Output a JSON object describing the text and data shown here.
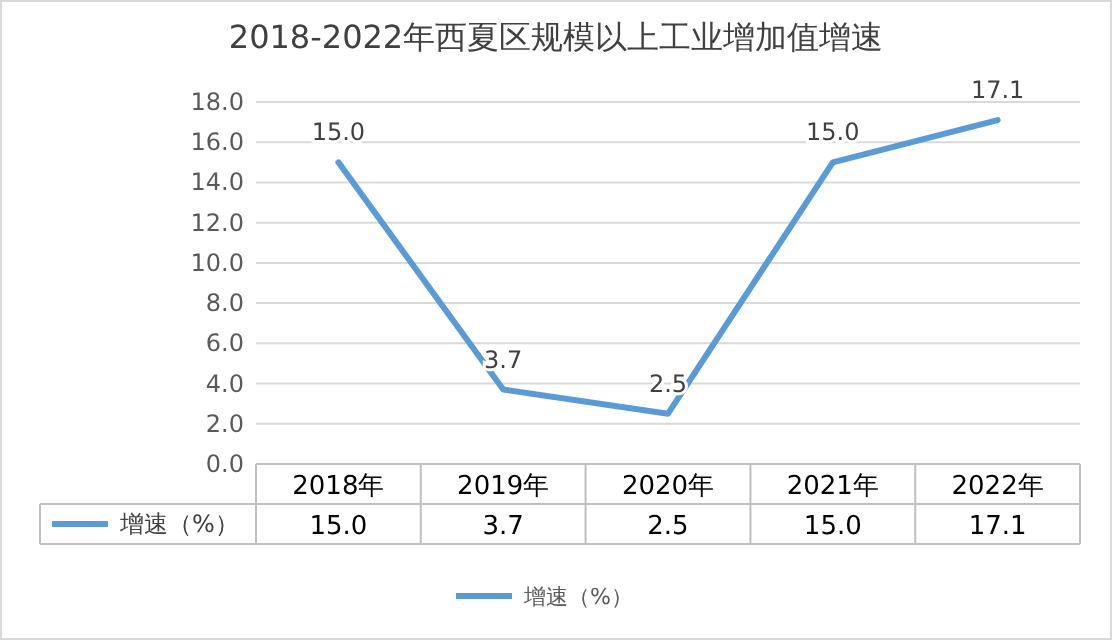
{
  "chart_data": {
    "type": "line",
    "title": "2018-2022年西夏区规模以上工业增加值增速",
    "categories": [
      "2018年",
      "2019年",
      "2020年",
      "2021年",
      "2022年"
    ],
    "series": [
      {
        "name": "增速（%）",
        "color": "#5b9bd5",
        "values": [
          15.0,
          3.7,
          2.5,
          15.0,
          17.1
        ],
        "value_labels": [
          "15.0",
          "3.7",
          "2.5",
          "15.0",
          "17.1"
        ]
      }
    ],
    "ylim": [
      0,
      18
    ],
    "yticks": [
      {
        "value": 0,
        "label": "0.0"
      },
      {
        "value": 2,
        "label": "2.0"
      },
      {
        "value": 4,
        "label": "4.0"
      },
      {
        "value": 6,
        "label": "6.0"
      },
      {
        "value": 8,
        "label": "8.0"
      },
      {
        "value": 10,
        "label": "10.0"
      },
      {
        "value": 12,
        "label": "12.0"
      },
      {
        "value": 14,
        "label": "14.0"
      },
      {
        "value": 16,
        "label": "16.0"
      },
      {
        "value": 18,
        "label": "18.0"
      }
    ],
    "grid": "y",
    "legend": "bottom",
    "marker": "none",
    "line_style": "solid"
  }
}
